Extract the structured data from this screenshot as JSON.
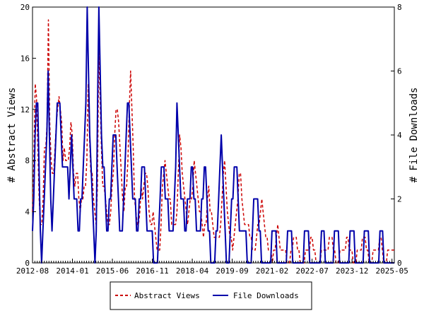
{
  "chart_data": {
    "type": "line",
    "title": "",
    "ylabel_left": "# Abstract Views",
    "ylabel_right": "# File Downloads",
    "ylim_left": [
      0,
      20
    ],
    "ylim_right": [
      0,
      8
    ],
    "yticks_left": [
      "0",
      "4",
      "8",
      "12",
      "16",
      "20"
    ],
    "yticks_right": [
      "0",
      "2",
      "4",
      "6",
      "8"
    ],
    "x_tick_labels": [
      "2012-08",
      "2014-01",
      "2015-06",
      "2016-11",
      "2018-04",
      "2019-09",
      "2021-02",
      "2022-07",
      "2023-12",
      "2025-05"
    ],
    "x_range_months": [
      "2012-08",
      "2025-06"
    ],
    "grid": false,
    "legend_position": "bottom-center",
    "series": [
      {
        "name": "Abstract Views",
        "axis": "left",
        "color": "#cc0000",
        "style": "dashed",
        "values": [
          4,
          8,
          14,
          13,
          9,
          5,
          3,
          3,
          5,
          9,
          9,
          11,
          19,
          11,
          8,
          7,
          7,
          9,
          11,
          12,
          13,
          12,
          11,
          8,
          9,
          8,
          8,
          8,
          9,
          11,
          10,
          7,
          6,
          7,
          7,
          5,
          4,
          5,
          5,
          6,
          6,
          8,
          14,
          10,
          7,
          7,
          5,
          4,
          3,
          6,
          17,
          13,
          9,
          6,
          6,
          5,
          4,
          3,
          3,
          4,
          6,
          7,
          10,
          12,
          12,
          11,
          9,
          7,
          5,
          4,
          6,
          6,
          8,
          12,
          15,
          12,
          9,
          5,
          4,
          3,
          3,
          4,
          6,
          5,
          6,
          7,
          7,
          6,
          4,
          3,
          3,
          4,
          3,
          2,
          1,
          1,
          1,
          3,
          6,
          7,
          8,
          7,
          6,
          5,
          5,
          3,
          3,
          3,
          3,
          4,
          7,
          10,
          9,
          7,
          6,
          5,
          4,
          3,
          4,
          5,
          5,
          6,
          8,
          7,
          6,
          5,
          4,
          4,
          3,
          2,
          3,
          3,
          5,
          6,
          4,
          4,
          3,
          2,
          2,
          2,
          2,
          2,
          3,
          5,
          7,
          8,
          6,
          4,
          3,
          2,
          2,
          1,
          2,
          3,
          4,
          5,
          7,
          7,
          5,
          4,
          3,
          3,
          3,
          3,
          2,
          2,
          1,
          1,
          1,
          2,
          3,
          3,
          4,
          5,
          4,
          3,
          2,
          2,
          1,
          1,
          1,
          0,
          1,
          1,
          2,
          3,
          2,
          1,
          1,
          1,
          1,
          1,
          0,
          0,
          0,
          1,
          1,
          2,
          2,
          2,
          1,
          1,
          0,
          0,
          0,
          0,
          1,
          1,
          1,
          1,
          2,
          2,
          1,
          1,
          0,
          0,
          0,
          0,
          1,
          1,
          1,
          1,
          1,
          1,
          2,
          2,
          2,
          1,
          1,
          0,
          0,
          0,
          1,
          1,
          1,
          1,
          1,
          2,
          2,
          1,
          1,
          1,
          0,
          0,
          0,
          1,
          1,
          1,
          1,
          2,
          2,
          2,
          1,
          1,
          0,
          0,
          0,
          1,
          1,
          1,
          1,
          1,
          2,
          2,
          1,
          0,
          0,
          0,
          1,
          1,
          1,
          1,
          1,
          1
        ]
      },
      {
        "name": "File Downloads",
        "axis": "right",
        "color": "#0000aa",
        "style": "solid",
        "values": [
          1,
          2,
          4,
          5,
          5,
          3,
          1,
          0,
          1,
          2,
          3,
          4,
          6,
          4,
          2,
          1,
          2,
          3,
          4,
          5,
          5,
          5,
          4,
          3,
          3,
          3,
          3,
          3,
          2,
          3,
          4,
          3,
          2,
          2,
          2,
          1,
          1,
          2,
          2,
          3,
          4,
          5,
          8,
          6,
          4,
          3,
          2,
          1,
          0,
          1,
          5,
          8,
          6,
          4,
          3,
          3,
          2,
          1,
          1,
          2,
          2,
          3,
          4,
          4,
          4,
          3,
          2,
          1,
          1,
          1,
          2,
          3,
          4,
          5,
          5,
          4,
          3,
          2,
          2,
          2,
          1,
          1,
          2,
          2,
          3,
          3,
          3,
          2,
          1,
          1,
          1,
          1,
          1,
          0,
          0,
          0,
          0,
          1,
          2,
          3,
          3,
          3,
          2,
          2,
          2,
          1,
          1,
          1,
          1,
          2,
          3,
          5,
          4,
          3,
          2,
          2,
          2,
          1,
          1,
          2,
          2,
          2,
          3,
          3,
          2,
          2,
          1,
          1,
          1,
          1,
          2,
          2,
          3,
          3,
          2,
          1,
          1,
          0,
          0,
          0,
          0,
          1,
          1,
          2,
          3,
          4,
          3,
          2,
          1,
          0,
          0,
          0,
          1,
          2,
          2,
          3,
          3,
          3,
          2,
          1,
          1,
          1,
          1,
          1,
          1,
          0,
          0,
          0,
          0,
          1,
          2,
          2,
          2,
          2,
          1,
          1,
          0,
          0,
          0,
          0,
          0,
          0,
          0,
          0,
          1,
          1,
          1,
          1,
          0,
          0,
          0,
          0,
          0,
          0,
          0,
          0,
          1,
          1,
          1,
          1,
          0,
          0,
          0,
          0,
          0,
          0,
          0,
          0,
          0,
          1,
          1,
          1,
          1,
          0,
          0,
          0,
          0,
          0,
          0,
          0,
          0,
          0,
          1,
          1,
          1,
          0,
          0,
          0,
          0,
          0,
          0,
          0,
          1,
          1,
          1,
          1,
          0,
          0,
          0,
          0,
          0,
          0,
          0,
          0,
          1,
          1,
          1,
          1,
          0,
          0,
          0,
          0,
          0,
          0,
          0,
          1,
          1,
          1,
          1,
          0,
          0,
          0,
          0,
          0,
          0,
          0,
          0,
          1,
          1,
          1,
          0,
          0,
          0,
          0,
          0,
          0,
          0,
          0,
          0
        ]
      }
    ]
  }
}
